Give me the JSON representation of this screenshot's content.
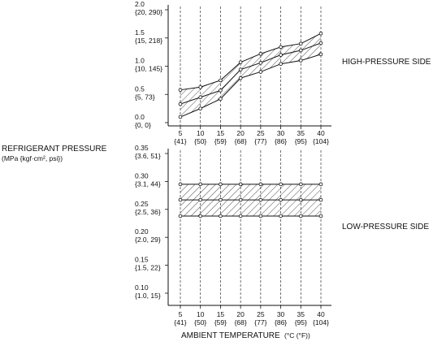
{
  "y_axis": {
    "label": "REFRIGERANT PRESSURE",
    "unit": "(MPa {kgf·cm², psi})"
  },
  "x_axis": {
    "label": "AMBIENT TEMPERATURE",
    "unit": "(°C (°F))"
  },
  "chart_data": [
    {
      "type": "area",
      "title": "HIGH-PRESSURE SIDE",
      "x": [
        5,
        10,
        15,
        20,
        25,
        30,
        35,
        40
      ],
      "x_tick_labels": [
        "5",
        "10",
        "15",
        "20",
        "25",
        "30",
        "35",
        "40"
      ],
      "x_tick_sublabels": [
        "{41}",
        "{50}",
        "{59}",
        "{68}",
        "{77}",
        "{86}",
        "{95}",
        "{104}"
      ],
      "ylim": [
        0,
        2.0
      ],
      "y_ticks": [
        {
          "value": 2.0,
          "label": "2.0",
          "sub": "{20, 290}"
        },
        {
          "value": 1.5,
          "label": "1.5",
          "sub": "{15, 218}"
        },
        {
          "value": 1.0,
          "label": "1.0",
          "sub": "{10, 145}"
        },
        {
          "value": 0.5,
          "label": "0.5",
          "sub": "{5, 73}"
        },
        {
          "value": 0.0,
          "label": "0.0",
          "sub": "{0, 0}"
        }
      ],
      "series": [
        {
          "values": [
            0.58,
            0.63,
            0.75,
            1.07,
            1.22,
            1.34,
            1.4,
            1.58
          ]
        },
        {
          "values": [
            0.33,
            0.45,
            0.57,
            0.94,
            1.06,
            1.2,
            1.28,
            1.41
          ]
        },
        {
          "values": [
            0.1,
            0.25,
            0.42,
            0.79,
            0.9,
            1.04,
            1.1,
            1.21
          ]
        }
      ]
    },
    {
      "type": "area",
      "title": "LOW-PRESSURE SIDE",
      "x": [
        5,
        10,
        15,
        20,
        25,
        30,
        35,
        40
      ],
      "x_tick_labels": [
        "5",
        "10",
        "15",
        "20",
        "25",
        "30",
        "35",
        "40"
      ],
      "x_tick_sublabels": [
        "{41}",
        "{50}",
        "{59}",
        "{68}",
        "{77}",
        "{86}",
        "{95}",
        "{104}"
      ],
      "ylim": [
        0.1,
        0.35
      ],
      "y_ticks": [
        {
          "value": 0.35,
          "label": "0.35",
          "sub": "{3.6, 51}"
        },
        {
          "value": 0.3,
          "label": "0.30",
          "sub": "{3.1, 44}"
        },
        {
          "value": 0.25,
          "label": "0.25",
          "sub": "{2.5, 36}"
        },
        {
          "value": 0.2,
          "label": "0.20",
          "sub": "{2.0, 29}"
        },
        {
          "value": 0.15,
          "label": "0.15",
          "sub": "{1.5, 22}"
        },
        {
          "value": 0.1,
          "label": "0.10",
          "sub": "{1.0, 15}"
        }
      ],
      "series": [
        {
          "values": [
            0.295,
            0.295,
            0.295,
            0.295,
            0.295,
            0.295,
            0.295,
            0.295
          ]
        },
        {
          "values": [
            0.267,
            0.267,
            0.267,
            0.267,
            0.267,
            0.267,
            0.267,
            0.267
          ]
        },
        {
          "values": [
            0.238,
            0.238,
            0.238,
            0.238,
            0.238,
            0.238,
            0.238,
            0.238
          ]
        }
      ]
    }
  ]
}
